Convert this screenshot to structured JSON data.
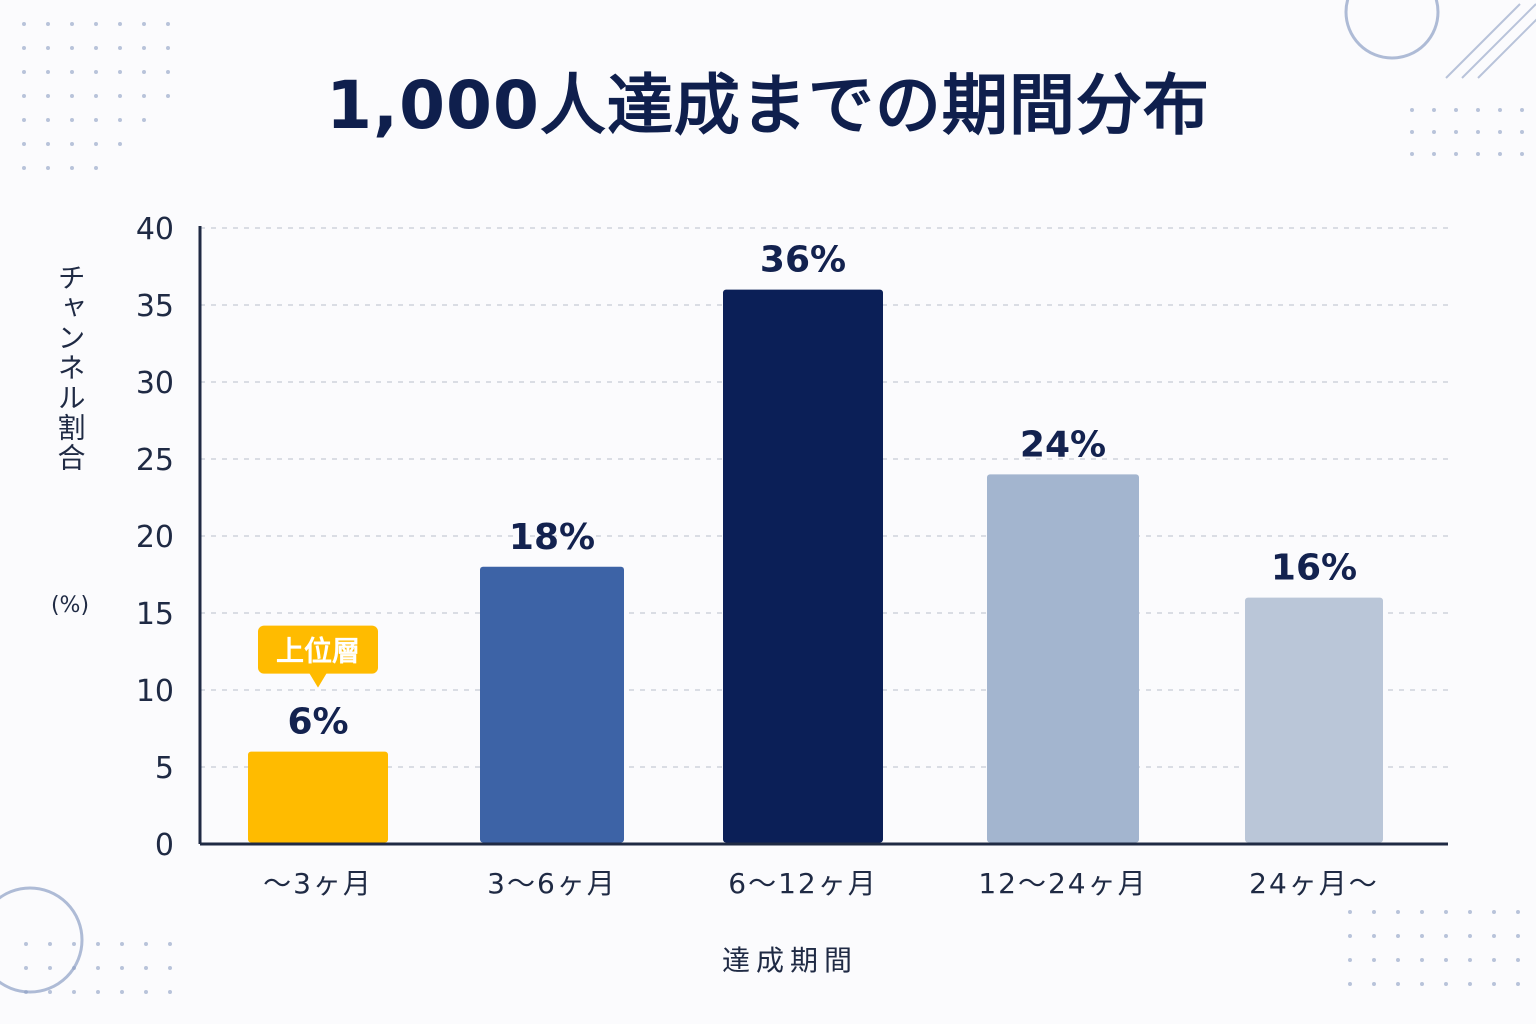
{
  "chart_data": {
    "type": "bar",
    "title": "1,000人達成までの期間分布",
    "xlabel": "達成期間",
    "ylabel": "チャンネル割合",
    "ylabel_unit": "(%)",
    "categories": [
      "〜3ヶ月",
      "3〜6ヶ月",
      "6〜12ヶ月",
      "12〜24ヶ月",
      "24ヶ月〜"
    ],
    "values": [
      6,
      18,
      36,
      24,
      16
    ],
    "value_labels": [
      "6%",
      "18%",
      "36%",
      "24%",
      "16%"
    ],
    "bar_colors": [
      "#ffbb00",
      "#3d63a6",
      "#0b1f57",
      "#a3b5cf",
      "#bac6d8"
    ],
    "ylim": [
      0,
      40
    ],
    "yticks": [
      0,
      5,
      10,
      15,
      20,
      25,
      30,
      35,
      40
    ],
    "grid": true,
    "annotation": {
      "category_index": 0,
      "text": "上位層",
      "color": "#ffbb00"
    }
  },
  "colors": {
    "title": "#0f1f4d",
    "axis": "#1f2a44",
    "grid": "#cfd3dc",
    "decoration": "#8d9fc4"
  }
}
